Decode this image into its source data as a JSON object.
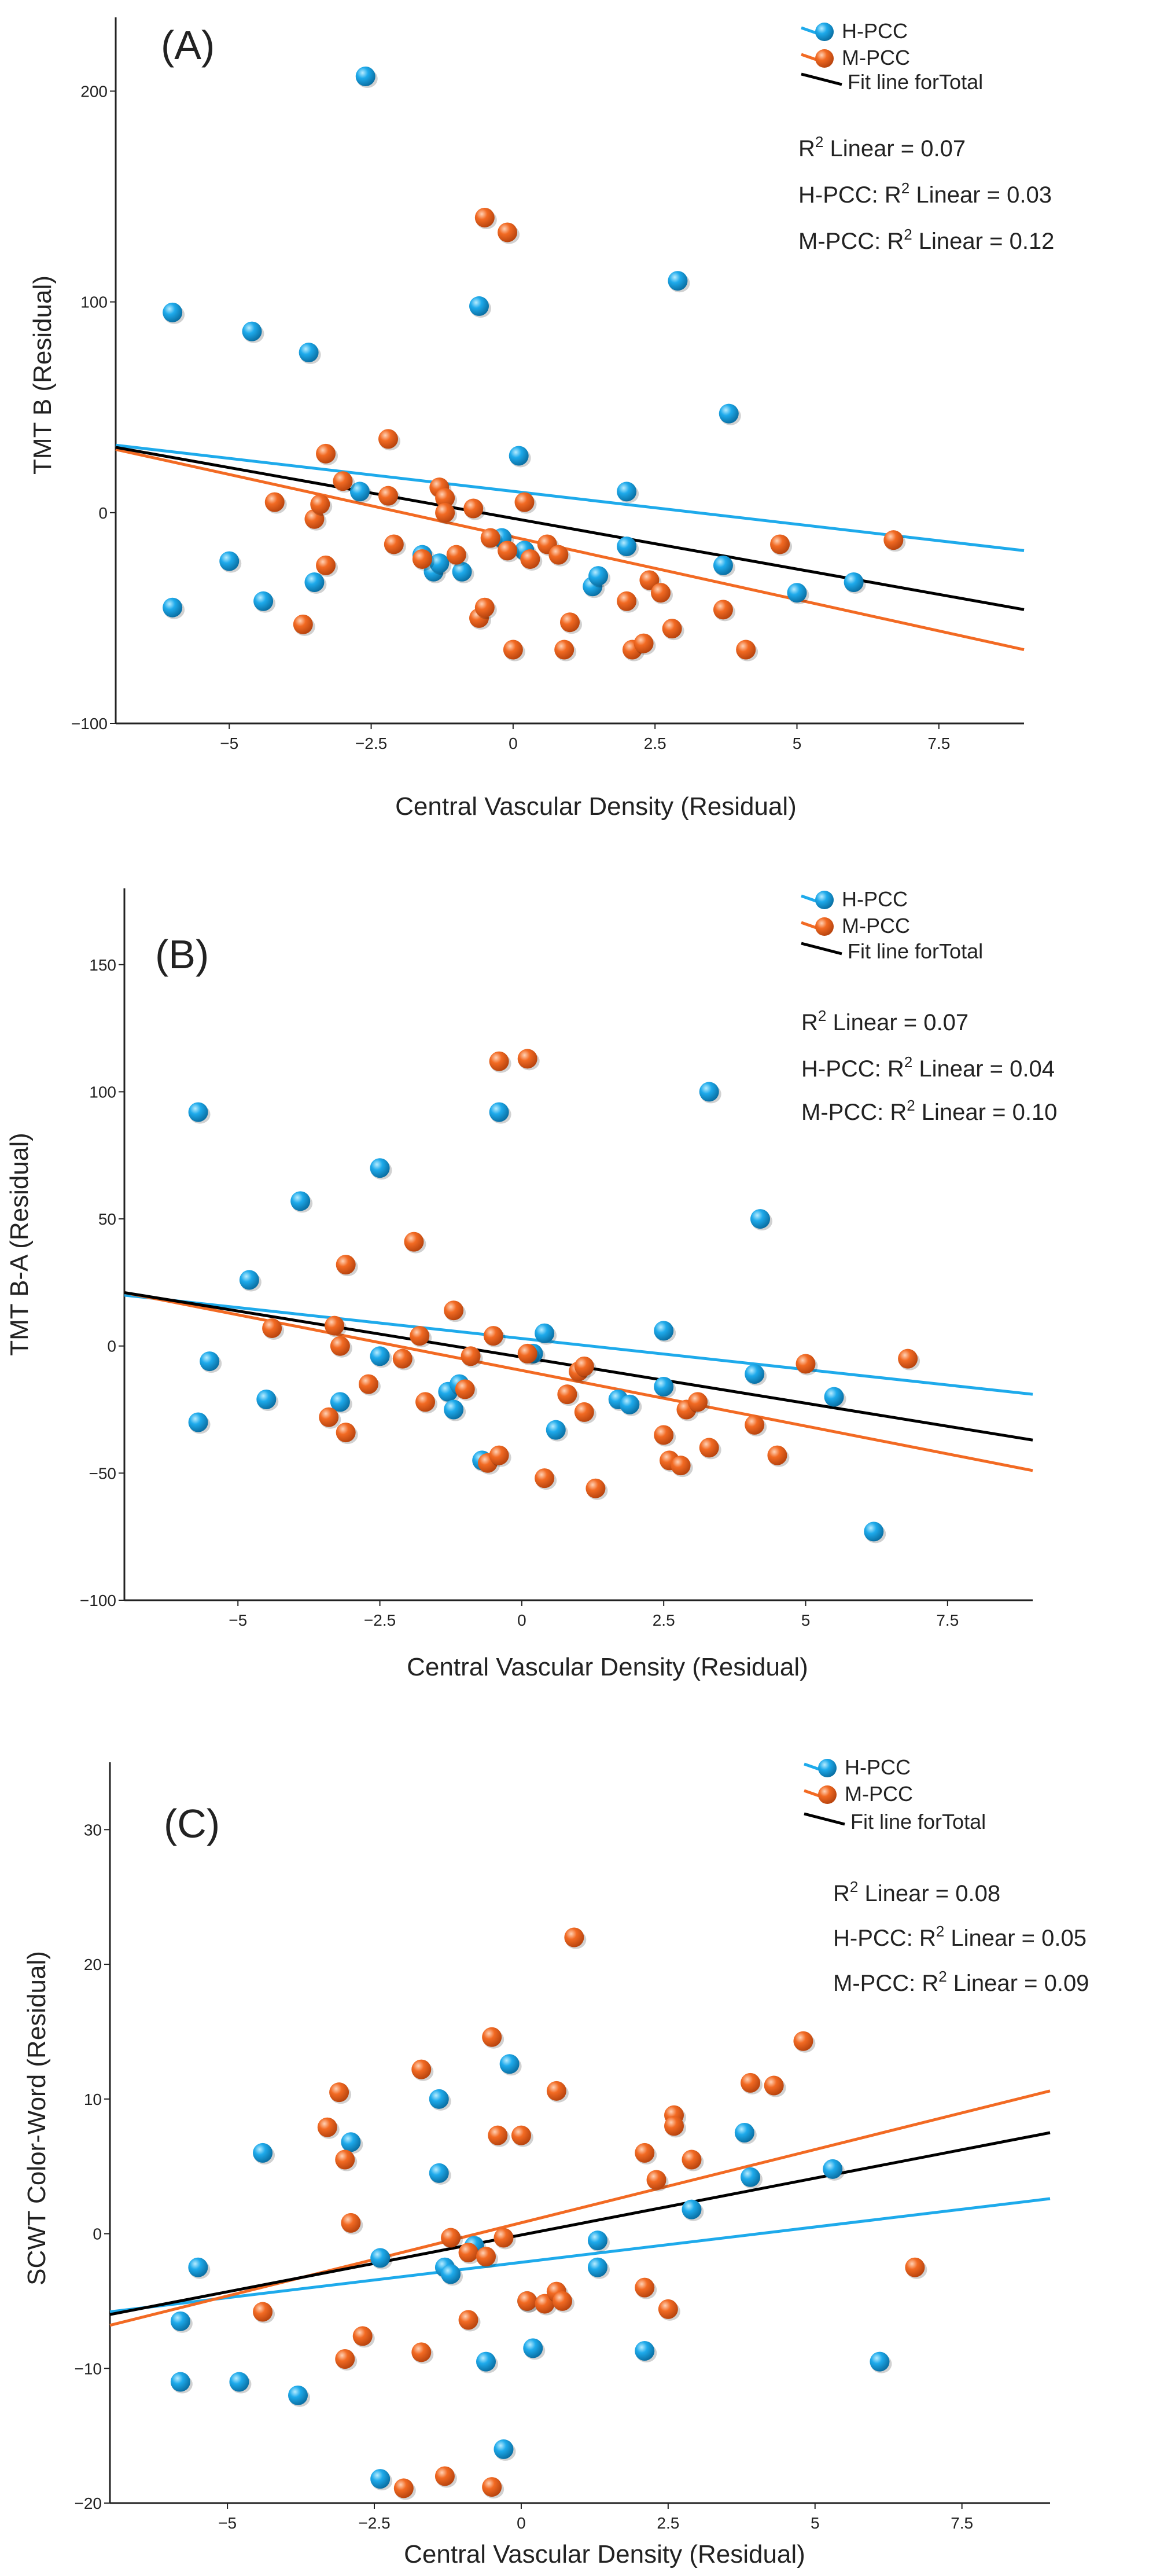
{
  "colors": {
    "hpcc": "#1eaaeb",
    "mpcc": "#f26a23",
    "total": "#000000"
  },
  "chart_data": [
    {
      "type": "scatter",
      "panel_label": "(A)",
      "xlabel": "Central Vascular Density (Residual)",
      "ylabel": "TMT B (Residual)",
      "xlim": [
        -7,
        9
      ],
      "ylim": [
        -100,
        235
      ],
      "xticks": [
        -5,
        -2.5,
        0,
        2.5,
        5,
        7.5
      ],
      "xtick_labels": [
        "−5",
        "−2.5",
        "0",
        "2.5",
        "5",
        "7.5"
      ],
      "yticks": [
        -100,
        0,
        100,
        200
      ],
      "ytick_labels": [
        "−100",
        "0",
        "100",
        "200"
      ],
      "legend": [
        "H-PCC",
        "M-PCC",
        "Fit line forTotal"
      ],
      "r2": {
        "total": "R² Linear = 0.07",
        "hpcc": "H-PCC: R² Linear = 0.03",
        "mpcc": "M-PCC: R² Linear = 0.12"
      },
      "fit_lines": [
        {
          "name": "H-PCC",
          "x": [
            -7,
            9
          ],
          "y": [
            32,
            -18
          ]
        },
        {
          "name": "M-PCC",
          "x": [
            -7,
            9
          ],
          "y": [
            30,
            -65
          ]
        },
        {
          "name": "Total",
          "x": [
            -7,
            9
          ],
          "y": [
            31,
            -46
          ]
        }
      ],
      "series": [
        {
          "name": "H-PCC",
          "points": [
            [
              -6.0,
              95
            ],
            [
              -4.6,
              86
            ],
            [
              -3.6,
              76
            ],
            [
              -2.6,
              207
            ],
            [
              -0.6,
              98
            ],
            [
              0.1,
              27
            ],
            [
              2.9,
              110
            ],
            [
              3.8,
              47
            ],
            [
              2.0,
              10
            ],
            [
              -2.7,
              10
            ],
            [
              -5.0,
              -23
            ],
            [
              -6.0,
              -45
            ],
            [
              -4.4,
              -42
            ],
            [
              -3.5,
              -33
            ],
            [
              -1.6,
              -20
            ],
            [
              -1.4,
              -28
            ],
            [
              -1.3,
              -24
            ],
            [
              -0.9,
              -28
            ],
            [
              -0.2,
              -12
            ],
            [
              0.2,
              -18
            ],
            [
              1.4,
              -35
            ],
            [
              1.5,
              -30
            ],
            [
              2.0,
              -16
            ],
            [
              3.7,
              -25
            ],
            [
              5.0,
              -38
            ],
            [
              6.0,
              -33
            ]
          ]
        },
        {
          "name": "M-PCC",
          "points": [
            [
              -0.5,
              140
            ],
            [
              -0.1,
              133
            ],
            [
              -3.3,
              28
            ],
            [
              -2.2,
              35
            ],
            [
              -3.0,
              15
            ],
            [
              -4.2,
              5
            ],
            [
              -3.5,
              -3
            ],
            [
              -3.4,
              4
            ],
            [
              -2.2,
              8
            ],
            [
              -1.3,
              12
            ],
            [
              -1.2,
              7
            ],
            [
              -1.2,
              0
            ],
            [
              -0.7,
              2
            ],
            [
              0.2,
              5
            ],
            [
              -0.4,
              -12
            ],
            [
              0.3,
              -22
            ],
            [
              0.6,
              -15
            ],
            [
              0.8,
              -20
            ],
            [
              -3.3,
              -25
            ],
            [
              -3.7,
              -53
            ],
            [
              -2.1,
              -15
            ],
            [
              -1.6,
              -22
            ],
            [
              -1.0,
              -20
            ],
            [
              -0.6,
              -50
            ],
            [
              -0.5,
              -45
            ],
            [
              -0.1,
              -18
            ],
            [
              0,
              -65
            ],
            [
              0.9,
              -65
            ],
            [
              1.0,
              -52
            ],
            [
              2.0,
              -42
            ],
            [
              2.1,
              -65
            ],
            [
              2.3,
              -62
            ],
            [
              2.4,
              -32
            ],
            [
              2.6,
              -38
            ],
            [
              2.8,
              -55
            ],
            [
              3.7,
              -46
            ],
            [
              4.1,
              -65
            ],
            [
              4.7,
              -15
            ],
            [
              6.7,
              -13
            ]
          ]
        }
      ]
    },
    {
      "type": "scatter",
      "panel_label": "(B)",
      "xlabel": "Central Vascular Density (Residual)",
      "ylabel": "TMT B-A (Residual)",
      "xlim": [
        -7,
        9
      ],
      "ylim": [
        -100,
        180
      ],
      "xticks": [
        -5,
        -2.5,
        0,
        2.5,
        5,
        7.5
      ],
      "xtick_labels": [
        "−5",
        "−2.5",
        "0",
        "2.5",
        "5",
        "7.5"
      ],
      "yticks": [
        -100,
        -50,
        0,
        50,
        100,
        150
      ],
      "ytick_labels": [
        "−100",
        "−50",
        "0",
        "50",
        "100",
        "150"
      ],
      "legend": [
        "H-PCC",
        "M-PCC",
        "Fit line forTotal"
      ],
      "r2": {
        "total": "R² Linear = 0.07",
        "hpcc": "H-PCC: R² Linear = 0.04",
        "mpcc": "M-PCC: R² Linear = 0.10"
      },
      "fit_lines": [
        {
          "name": "H-PCC",
          "x": [
            -7,
            9
          ],
          "y": [
            20,
            -19
          ]
        },
        {
          "name": "M-PCC",
          "x": [
            -7,
            9
          ],
          "y": [
            21,
            -49
          ]
        },
        {
          "name": "Total",
          "x": [
            -7,
            9
          ],
          "y": [
            21,
            -37
          ]
        }
      ],
      "series": [
        {
          "name": "H-PCC",
          "points": [
            [
              -5.7,
              92
            ],
            [
              -4.8,
              26
            ],
            [
              -3.9,
              57
            ],
            [
              -2.5,
              70
            ],
            [
              -0.4,
              92
            ],
            [
              0.4,
              5
            ],
            [
              3.3,
              100
            ],
            [
              4.2,
              50
            ],
            [
              2.5,
              6
            ],
            [
              -5.5,
              -6
            ],
            [
              -5.7,
              -30
            ],
            [
              -4.5,
              -21
            ],
            [
              -3.2,
              -22
            ],
            [
              -2.5,
              -4
            ],
            [
              -1.3,
              -18
            ],
            [
              -1.2,
              -25
            ],
            [
              -1.1,
              -15
            ],
            [
              -0.7,
              -45
            ],
            [
              0.2,
              -3
            ],
            [
              0.6,
              -33
            ],
            [
              1.7,
              -21
            ],
            [
              1.9,
              -23
            ],
            [
              2.5,
              -16
            ],
            [
              4.1,
              -11
            ],
            [
              5.5,
              -20
            ],
            [
              6.2,
              -73
            ]
          ]
        },
        {
          "name": "M-PCC",
          "points": [
            [
              -0.4,
              112
            ],
            [
              0.1,
              113
            ],
            [
              -3.1,
              32
            ],
            [
              -1.9,
              41
            ],
            [
              -4.4,
              7
            ],
            [
              -3.3,
              8
            ],
            [
              -3.2,
              0
            ],
            [
              -2.7,
              -15
            ],
            [
              -1.8,
              4
            ],
            [
              -1.2,
              14
            ],
            [
              -0.9,
              -4
            ],
            [
              -0.5,
              4
            ],
            [
              0.1,
              -3
            ],
            [
              1.0,
              -10
            ],
            [
              1.1,
              -8
            ],
            [
              -3.4,
              -28
            ],
            [
              -3.1,
              -34
            ],
            [
              -2.1,
              -5
            ],
            [
              -1.7,
              -22
            ],
            [
              -1.0,
              -17
            ],
            [
              -0.6,
              -46
            ],
            [
              -0.4,
              -43
            ],
            [
              0.4,
              -52
            ],
            [
              0.8,
              -19
            ],
            [
              1.1,
              -26
            ],
            [
              1.3,
              -56
            ],
            [
              2.5,
              -35
            ],
            [
              2.6,
              -45
            ],
            [
              2.8,
              -47
            ],
            [
              2.9,
              -25
            ],
            [
              3.1,
              -22
            ],
            [
              3.3,
              -40
            ],
            [
              4.1,
              -31
            ],
            [
              4.5,
              -43
            ],
            [
              5.0,
              -7
            ],
            [
              6.8,
              -5
            ]
          ]
        }
      ]
    },
    {
      "type": "scatter",
      "panel_label": "(C)",
      "xlabel": "Central Vascular Density (Residual)",
      "ylabel": "SCWT Color-Word (Residual)",
      "xlim": [
        -7,
        9
      ],
      "ylim": [
        -20,
        35
      ],
      "xticks": [
        -5,
        -2.5,
        0,
        2.5,
        5,
        7.5
      ],
      "xtick_labels": [
        "−5",
        "−2.5",
        "0",
        "2.5",
        "5",
        "7.5"
      ],
      "yticks": [
        -20,
        -10,
        0,
        10,
        20,
        30
      ],
      "ytick_labels": [
        "−20",
        "−10",
        "0",
        "10",
        "20",
        "30"
      ],
      "legend": [
        "H-PCC",
        "M-PCC",
        "Fit line forTotal"
      ],
      "r2": {
        "total": "R² Linear = 0.08",
        "hpcc": "H-PCC: R² Linear = 0.05",
        "mpcc": "M-PCC: R² Linear = 0.09"
      },
      "fit_lines": [
        {
          "name": "H-PCC",
          "x": [
            -7,
            9
          ],
          "y": [
            -5.8,
            2.6
          ]
        },
        {
          "name": "M-PCC",
          "x": [
            -7,
            9
          ],
          "y": [
            -6.8,
            10.6
          ]
        },
        {
          "name": "Total",
          "x": [
            -7,
            9
          ],
          "y": [
            -6.0,
            7.5
          ]
        }
      ],
      "series": [
        {
          "name": "H-PCC",
          "points": [
            [
              -5.5,
              -2.5
            ],
            [
              -5.8,
              -6.5
            ],
            [
              -5.8,
              -11
            ],
            [
              -4.8,
              -11
            ],
            [
              -4.4,
              6
            ],
            [
              -3.8,
              -12
            ],
            [
              -2.9,
              6.8
            ],
            [
              -2.4,
              -1.8
            ],
            [
              -1.4,
              10
            ],
            [
              -1.3,
              -2.5
            ],
            [
              -1.4,
              4.5
            ],
            [
              -1.2,
              -3
            ],
            [
              -0.8,
              -0.9
            ],
            [
              -0.6,
              -9.5
            ],
            [
              -0.2,
              12.6
            ],
            [
              0.1,
              -5
            ],
            [
              0.2,
              -8.5
            ],
            [
              -0.3,
              -16
            ],
            [
              1.3,
              -0.5
            ],
            [
              1.3,
              -2.5
            ],
            [
              2.1,
              -8.7
            ],
            [
              2.9,
              1.8
            ],
            [
              3.9,
              4.2
            ],
            [
              3.8,
              7.5
            ],
            [
              5.3,
              4.8
            ],
            [
              6.1,
              -9.5
            ],
            [
              -2.4,
              -18.2
            ]
          ]
        },
        {
          "name": "M-PCC",
          "points": [
            [
              0.9,
              22
            ],
            [
              -3.3,
              7.9
            ],
            [
              -3.1,
              10.5
            ],
            [
              -3.0,
              5.5
            ],
            [
              -2.9,
              0.8
            ],
            [
              -1.7,
              12.2
            ],
            [
              -0.5,
              14.6
            ],
            [
              0.6,
              10.6
            ],
            [
              -0.4,
              7.3
            ],
            [
              0,
              7.3
            ],
            [
              -0.3,
              -0.3
            ],
            [
              -1.2,
              -0.3
            ],
            [
              -0.9,
              -1.4
            ],
            [
              -0.6,
              -1.7
            ],
            [
              0.1,
              -5
            ],
            [
              0.4,
              -5.2
            ],
            [
              0.6,
              -4.3
            ],
            [
              0.7,
              -5
            ],
            [
              2.1,
              6
            ],
            [
              2.3,
              4
            ],
            [
              2.6,
              8.8
            ],
            [
              2.6,
              8
            ],
            [
              2.9,
              5.5
            ],
            [
              3.9,
              11.2
            ],
            [
              4.3,
              11
            ],
            [
              4.8,
              14.3
            ],
            [
              6.7,
              -2.5
            ],
            [
              -4.4,
              -5.8
            ],
            [
              -3.0,
              -9.3
            ],
            [
              -2.7,
              -7.6
            ],
            [
              -1.7,
              -8.8
            ],
            [
              -0.9,
              -6.4
            ],
            [
              -0.5,
              -18.8
            ],
            [
              -1.3,
              -18
            ],
            [
              -2.0,
              -18.9
            ],
            [
              2.1,
              -4
            ],
            [
              2.5,
              -5.6
            ]
          ]
        }
      ]
    }
  ]
}
